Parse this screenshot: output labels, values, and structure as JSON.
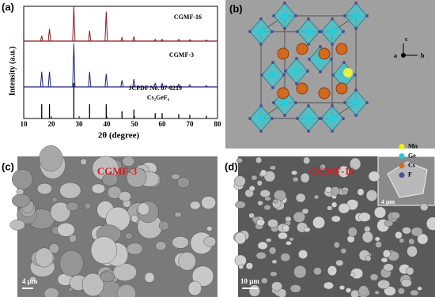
{
  "chart_data": {
    "type": "xrd",
    "panel_label": "(a)",
    "xlabel": "2θ (degree)",
    "ylabel": "Intensity (a.u.)",
    "xlim": [
      10,
      80
    ],
    "xticks": [
      10,
      20,
      30,
      40,
      50,
      60,
      70,
      80
    ],
    "ylim": [
      0,
      100
    ],
    "series": [
      {
        "name": "CGMF-16",
        "color": "#8b1a1a",
        "x": [
          16.5,
          19.3,
          28.1,
          33.8,
          39.8,
          45.5,
          49.8,
          57.5,
          60,
          66,
          70,
          76
        ],
        "values": [
          15,
          35,
          100,
          30,
          85,
          10,
          12,
          5,
          5,
          5,
          4,
          3
        ]
      },
      {
        "name": "CGMF-3",
        "color": "#1a237e",
        "x": [
          16.5,
          19.3,
          28.1,
          33.8,
          39.8,
          45.5,
          49.8,
          57.5,
          60,
          66,
          70,
          76
        ],
        "values": [
          35,
          35,
          100,
          35,
          30,
          15,
          18,
          8,
          8,
          6,
          5,
          3
        ]
      },
      {
        "name": "JCPDF No. 07-0219",
        "subtitle": "Cs₂GeF₆",
        "color": "#000000",
        "x": [
          16.5,
          19.3,
          28.1,
          33.8,
          39.8,
          45.5,
          49.8,
          57.5,
          60,
          66,
          70,
          76
        ],
        "values": [
          40,
          40,
          100,
          40,
          40,
          20,
          25,
          15,
          15,
          12,
          10,
          8
        ]
      }
    ]
  },
  "structure": {
    "panel_label": "(b)",
    "axes": [
      "c",
      "a",
      "b"
    ],
    "legend": [
      {
        "name": "Mn",
        "color": "#f0f000"
      },
      {
        "name": "Ge",
        "color": "#22c8d8"
      },
      {
        "name": "Cs",
        "color": "#d2691e"
      },
      {
        "name": "F",
        "color": "#5050a0"
      }
    ]
  },
  "sem": [
    {
      "panel_label": "(c)",
      "label": "CGMF-3",
      "scale": "4 μm"
    },
    {
      "panel_label": "(d)",
      "label": "CGMF-16",
      "scale": "10 μm",
      "inset_scale": "4 μm"
    }
  ]
}
